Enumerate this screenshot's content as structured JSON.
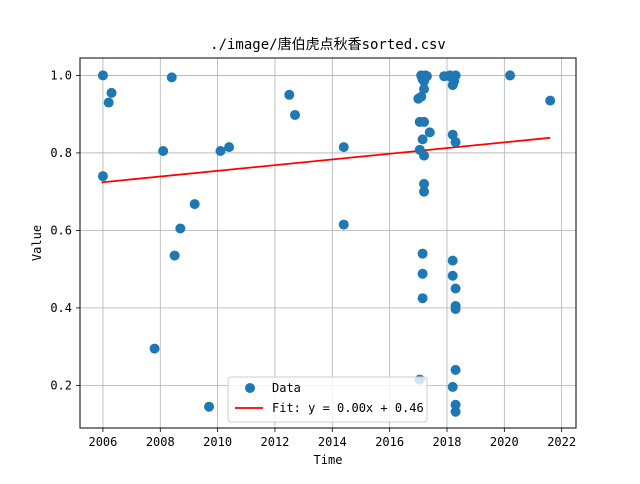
{
  "chart_data": {
    "type": "scatter",
    "title": "./image/唐伯虎点秋香sorted.csv",
    "xlabel": "Time",
    "ylabel": "Value",
    "xlim": [
      2005.2,
      2022.5
    ],
    "ylim": [
      0.09,
      1.045
    ],
    "xticks": [
      2006,
      2008,
      2010,
      2012,
      2014,
      2016,
      2018,
      2020,
      2022
    ],
    "yticks": [
      0.2,
      0.4,
      0.6,
      0.8,
      1.0
    ],
    "ytick_labels": [
      "0.2",
      "0.4",
      "0.6",
      "0.8",
      "1.0"
    ],
    "grid": true,
    "legend": {
      "position": "lower-center",
      "entries": [
        "Data",
        "Fit: y = 0.00x + 0.46"
      ]
    },
    "colors": {
      "data": "#1f77b4",
      "fit": "#ff0000",
      "grid": "#b0b0b0"
    },
    "series": [
      {
        "name": "Data",
        "type": "scatter",
        "points": [
          [
            2006.0,
            1.0
          ],
          [
            2006.0,
            0.74
          ],
          [
            2006.2,
            0.93
          ],
          [
            2006.3,
            0.955
          ],
          [
            2007.8,
            0.295
          ],
          [
            2008.1,
            0.805
          ],
          [
            2008.4,
            0.995
          ],
          [
            2008.5,
            0.535
          ],
          [
            2008.7,
            0.605
          ],
          [
            2009.2,
            0.668
          ],
          [
            2009.7,
            0.145
          ],
          [
            2010.1,
            0.805
          ],
          [
            2010.4,
            0.815
          ],
          [
            2012.5,
            0.95
          ],
          [
            2012.7,
            0.898
          ],
          [
            2014.4,
            0.815
          ],
          [
            2014.4,
            0.615
          ],
          [
            2017.0,
            0.94
          ],
          [
            2017.05,
            0.88
          ],
          [
            2017.05,
            0.808
          ],
          [
            2017.05,
            0.215
          ],
          [
            2017.1,
            1.0
          ],
          [
            2017.1,
            0.945
          ],
          [
            2017.15,
            0.99
          ],
          [
            2017.15,
            0.835
          ],
          [
            2017.15,
            0.54
          ],
          [
            2017.15,
            0.488
          ],
          [
            2017.15,
            0.425
          ],
          [
            2017.2,
            0.985
          ],
          [
            2017.2,
            0.965
          ],
          [
            2017.2,
            0.88
          ],
          [
            2017.2,
            0.793
          ],
          [
            2017.2,
            0.72
          ],
          [
            2017.2,
            0.7
          ],
          [
            2017.25,
            1.0
          ],
          [
            2017.3,
            0.998
          ],
          [
            2017.4,
            0.853
          ],
          [
            2017.9,
            0.998
          ],
          [
            2018.1,
            1.0
          ],
          [
            2018.15,
            0.995
          ],
          [
            2018.2,
            0.975
          ],
          [
            2018.2,
            0.847
          ],
          [
            2018.2,
            0.522
          ],
          [
            2018.2,
            0.483
          ],
          [
            2018.2,
            0.196
          ],
          [
            2018.25,
            0.985
          ],
          [
            2018.3,
            1.0
          ],
          [
            2018.3,
            0.828
          ],
          [
            2018.3,
            0.45
          ],
          [
            2018.3,
            0.405
          ],
          [
            2018.3,
            0.397
          ],
          [
            2018.3,
            0.24
          ],
          [
            2018.3,
            0.15
          ],
          [
            2018.3,
            0.132
          ],
          [
            2020.2,
            1.0
          ],
          [
            2021.6,
            0.935
          ]
        ]
      },
      {
        "name": "Fit: y = 0.00x + 0.46",
        "type": "line",
        "points": [
          [
            2005.95,
            0.724
          ],
          [
            2021.6,
            0.839
          ]
        ]
      }
    ]
  }
}
